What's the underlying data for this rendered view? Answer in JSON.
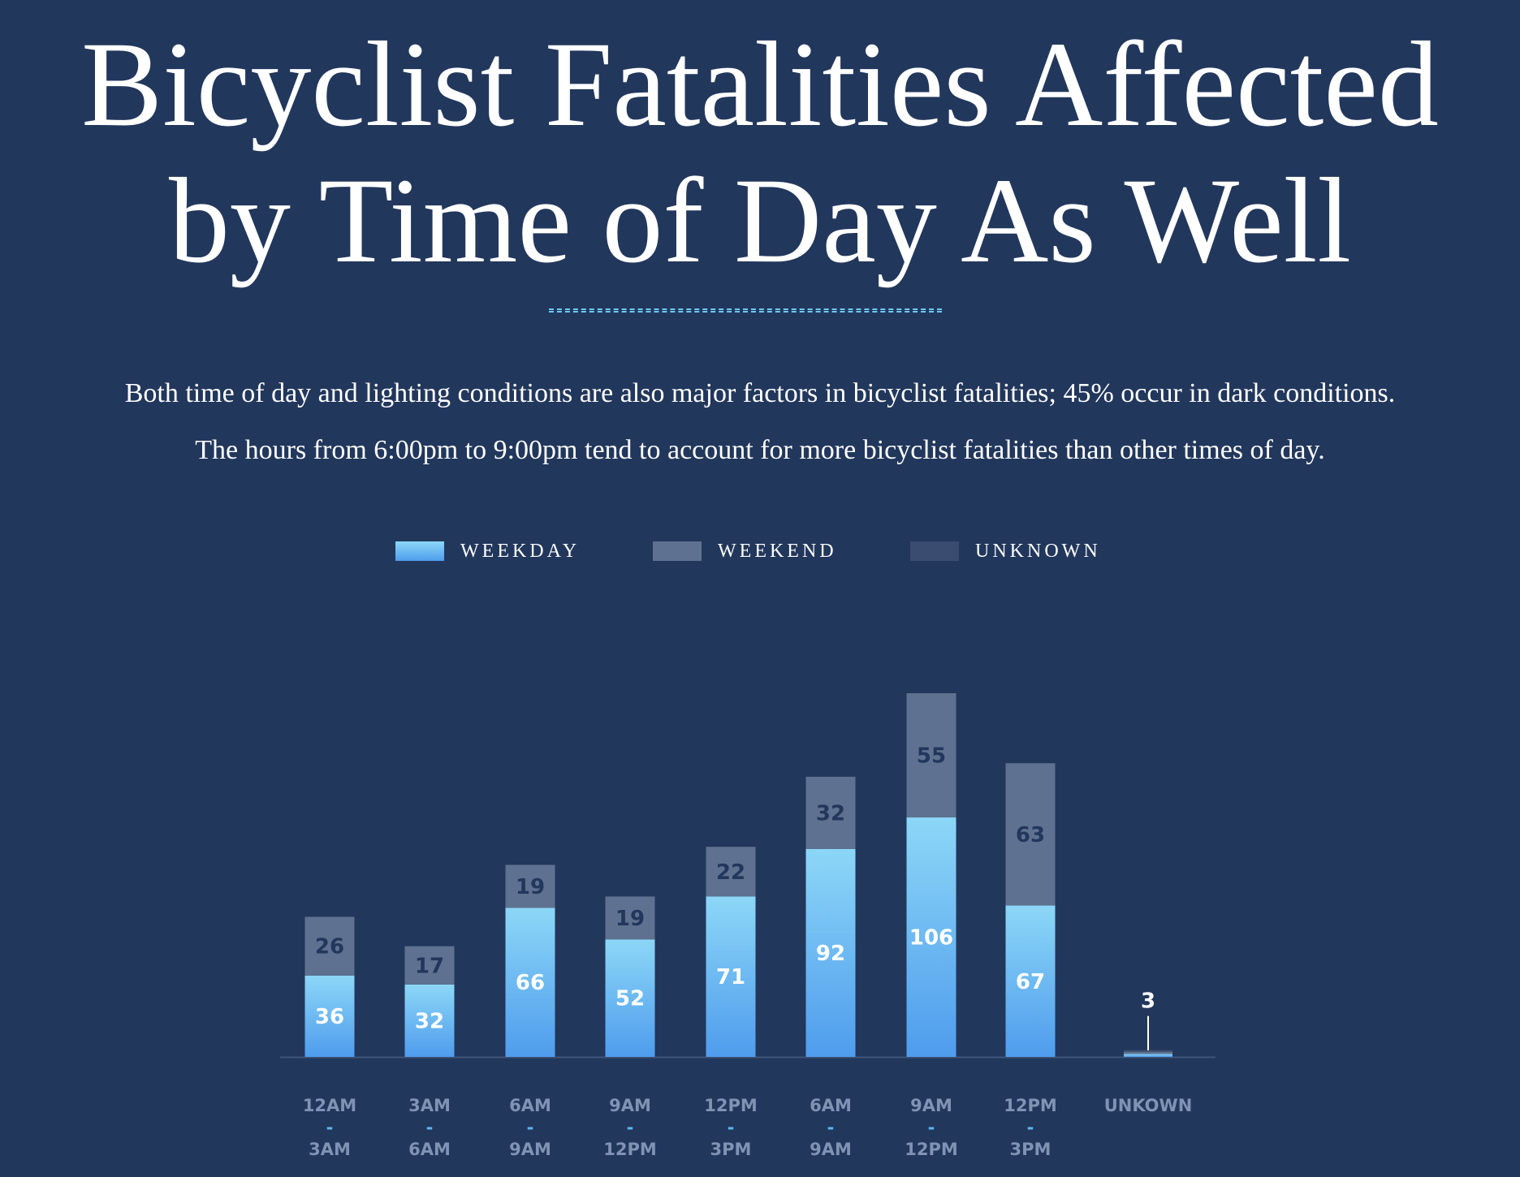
{
  "header": {
    "title_line1": "Bicyclist Fatalities Affected",
    "title_line2": "by Time of Day As Well",
    "description_line1": "Both time of day and lighting conditions are also major factors in bicyclist fatalities; 45% occur in dark conditions.",
    "description_line2": "The hours from 6:00pm to 9:00pm tend to account for more bicyclist fatalities than other times of day."
  },
  "legend": {
    "weekday": "WEEKDAY",
    "weekend": "WEEKEND",
    "unknown": "UNKNOWN"
  },
  "colors": {
    "background": "#22375c",
    "weekday_top": "#8cd7f7",
    "weekday_bottom": "#4f9ced",
    "weekend": "#5f7190",
    "unknown": "#3a4c6f",
    "axis": "#3f5479",
    "tick_label": "#7f93b5",
    "tick_dash": "#5bb4ee",
    "weekend_label": "#22375c"
  },
  "chart_data": {
    "type": "bar",
    "stacked": true,
    "categories": [
      [
        "12AM",
        "-",
        "3AM"
      ],
      [
        "3AM",
        "-",
        "6AM"
      ],
      [
        "6AM",
        "-",
        "9AM"
      ],
      [
        "9AM",
        "-",
        "12PM"
      ],
      [
        "12PM",
        "-",
        "3PM"
      ],
      [
        "6AM",
        "-",
        "9AM"
      ],
      [
        "9AM",
        "-",
        "12PM"
      ],
      [
        "12PM",
        "-",
        "3PM"
      ],
      [
        "UNKOWN"
      ]
    ],
    "series": [
      {
        "name": "WEEKDAY",
        "values": [
          36,
          32,
          66,
          52,
          71,
          92,
          106,
          67,
          1.3
        ]
      },
      {
        "name": "WEEKEND",
        "values": [
          26,
          17,
          19,
          19,
          22,
          32,
          55,
          63,
          1.0
        ]
      },
      {
        "name": "UNKNOWN",
        "values": [
          0,
          0,
          0,
          0,
          0,
          0,
          0,
          0,
          0.7
        ]
      }
    ],
    "bar_labels": {
      "weekday": [
        "36",
        "32",
        "66",
        "52",
        "71",
        "92",
        "106",
        "67",
        ""
      ],
      "weekend": [
        "26",
        "17",
        "19",
        "19",
        "22",
        "32",
        "55",
        "63",
        ""
      ],
      "total_callout": [
        "",
        "",
        "",
        "",
        "",
        "",
        "",
        "",
        "3"
      ]
    },
    "ylim": [
      0,
      161
    ],
    "legend_position": "top-center",
    "grid": false
  }
}
